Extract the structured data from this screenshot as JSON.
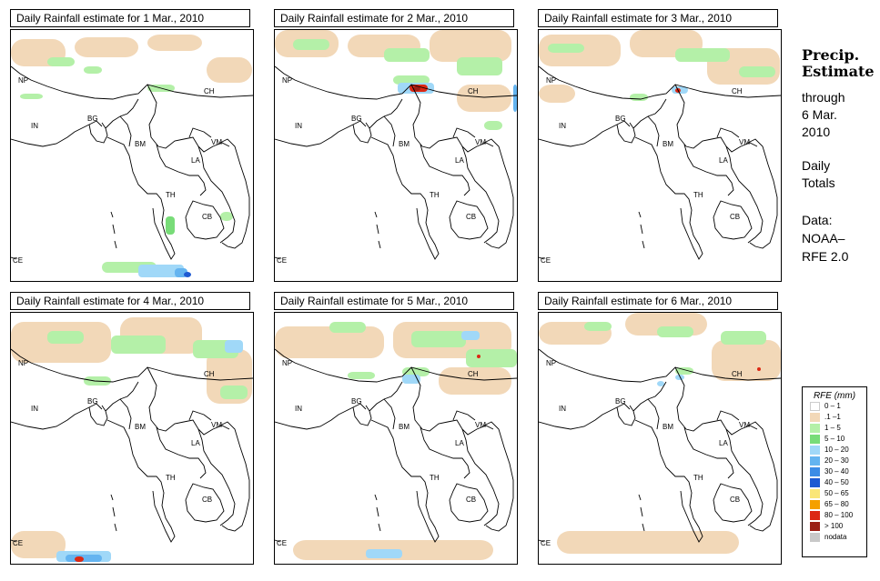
{
  "panels": [
    {
      "title": "Daily Rainfall estimate for  1 Mar., 2010"
    },
    {
      "title": "Daily Rainfall estimate for  2 Mar., 2010"
    },
    {
      "title": "Daily Rainfall estimate for  3 Mar., 2010"
    },
    {
      "title": "Daily Rainfall estimate for  4 Mar., 2010"
    },
    {
      "title": "Daily Rainfall estimate for  5 Mar., 2010"
    },
    {
      "title": "Daily Rainfall estimate for  6 Mar., 2010"
    }
  ],
  "map_labels": {
    "np": "NP",
    "ch": "CH",
    "in": "IN",
    "bg": "BG",
    "bm": "BM",
    "vm": "VM",
    "la": "LA",
    "th": "TH",
    "cb": "CB",
    "ce": "CE"
  },
  "sidebar": {
    "title_line1": "Precip.",
    "title_line2": "Estimate",
    "through": "through",
    "date_line1": "6 Mar.",
    "date_line2": "2010",
    "daily": "Daily",
    "totals": "Totals",
    "data": "Data:",
    "source1": "NOAA–",
    "source2": "RFE 2.0"
  },
  "legend": {
    "title": "RFE (mm)",
    "items": [
      {
        "label": "0 – 1",
        "color": "#ffffff"
      },
      {
        "label": ".1 –1",
        "color": "#f2d8b8"
      },
      {
        "label": "1 – 5",
        "color": "#b4f0a8"
      },
      {
        "label": "5 – 10",
        "color": "#78dc78"
      },
      {
        "label": "10 – 20",
        "color": "#a0d8f8"
      },
      {
        "label": "20 – 30",
        "color": "#64b4f0"
      },
      {
        "label": "30 – 40",
        "color": "#3c8ce6"
      },
      {
        "label": "40 – 50",
        "color": "#1e5ad2"
      },
      {
        "label": "50 – 65",
        "color": "#fae678"
      },
      {
        "label": "65 – 80",
        "color": "#f5a000"
      },
      {
        "label": "80 – 100",
        "color": "#dc2814"
      },
      {
        "label": "> 100",
        "color": "#9b1e14"
      },
      {
        "label": "nodata",
        "color": "#c8c8c8"
      }
    ]
  }
}
